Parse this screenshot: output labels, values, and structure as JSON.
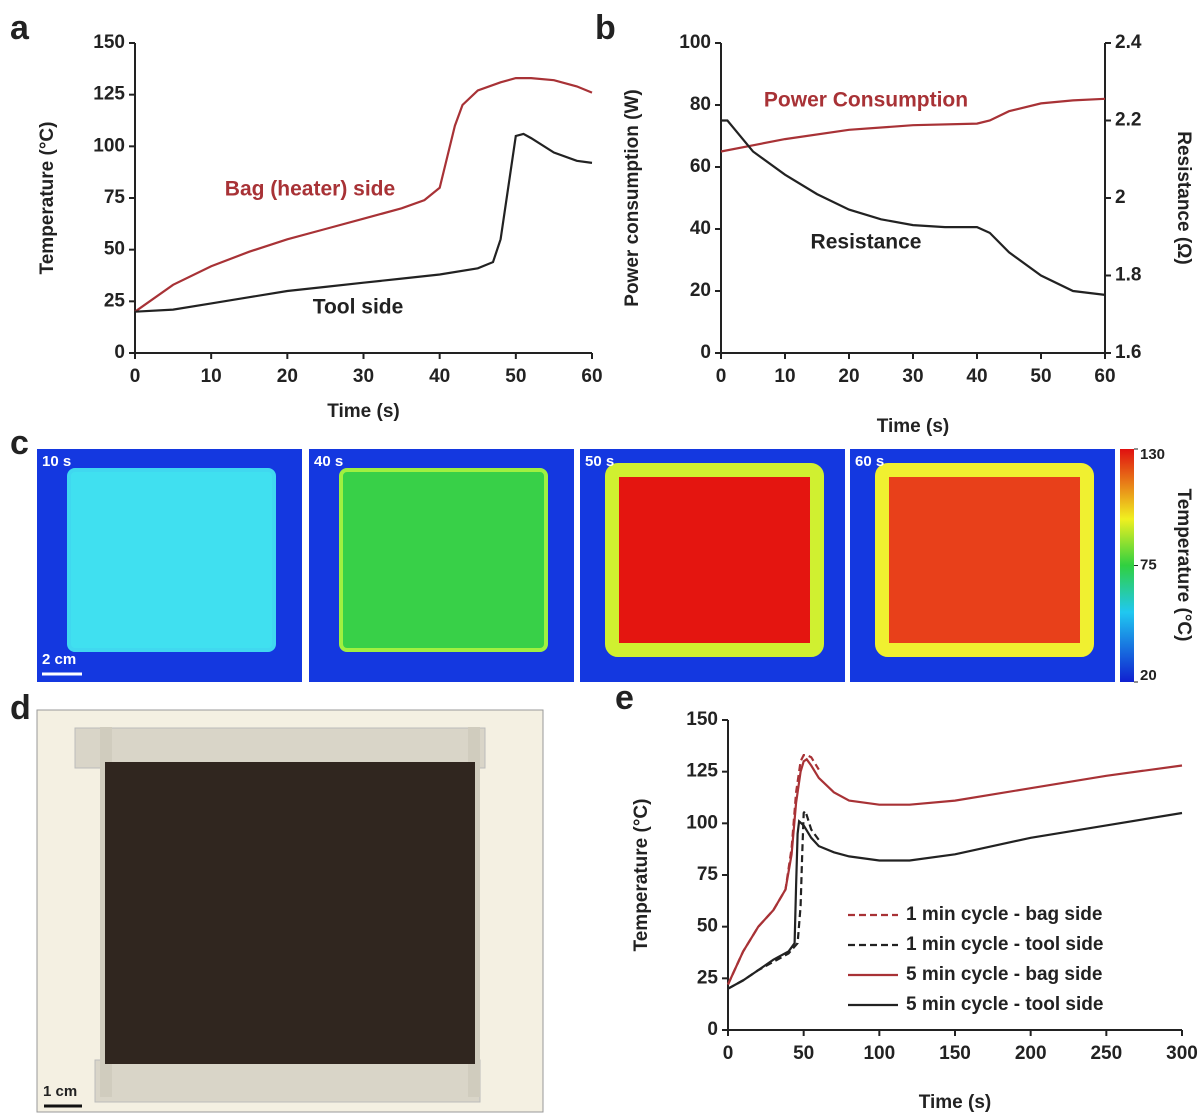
{
  "chart_data": [
    {
      "type": "line",
      "panel": "a",
      "xlabel": "Time (s)",
      "ylabel": "Temperature (°C)",
      "xlim": [
        0,
        60
      ],
      "xticks": [
        0,
        10,
        20,
        30,
        40,
        50,
        60
      ],
      "ylim": [
        0,
        150
      ],
      "yticks": [
        0,
        25,
        50,
        75,
        100,
        125,
        150
      ],
      "legend": false,
      "series": [
        {
          "name": "Bag (heater) side",
          "color": "#a83236",
          "x": [
            0,
            5,
            10,
            15,
            20,
            25,
            30,
            35,
            38,
            40,
            41,
            42,
            43,
            45,
            48,
            50,
            52,
            55,
            58,
            60
          ],
          "values": [
            20,
            33,
            42,
            49,
            55,
            60,
            65,
            70,
            74,
            80,
            95,
            110,
            120,
            127,
            131,
            133,
            133,
            132,
            129,
            126
          ]
        },
        {
          "name": "Tool side",
          "color": "#222222",
          "x": [
            0,
            5,
            10,
            15,
            20,
            25,
            30,
            35,
            40,
            45,
            47,
            48,
            49,
            50,
            51,
            52,
            55,
            58,
            60
          ],
          "values": [
            20,
            21,
            24,
            27,
            30,
            32,
            34,
            36,
            38,
            41,
            44,
            55,
            80,
            105,
            106,
            104,
            97,
            93,
            92
          ]
        }
      ]
    },
    {
      "type": "line",
      "panel": "b",
      "xlabel": "Time (s)",
      "ylabel": "Power consumption (W)",
      "y2label": "Resistance (Ω)",
      "xlim": [
        0,
        60
      ],
      "xticks": [
        0,
        10,
        20,
        30,
        40,
        50,
        60
      ],
      "ylim": [
        0,
        100
      ],
      "yticks": [
        0,
        20,
        40,
        60,
        80,
        100
      ],
      "y2lim": [
        1.6,
        2.4
      ],
      "y2ticks": [
        1.6,
        1.8,
        2,
        2.2,
        2.4
      ],
      "legend": false,
      "series": [
        {
          "name": "Power Consumption",
          "color": "#a83236",
          "x": [
            0,
            5,
            10,
            20,
            30,
            40,
            42,
            45,
            50,
            55,
            60
          ],
          "values": [
            65,
            67,
            69,
            72,
            73.5,
            74,
            75,
            78,
            80.5,
            81.5,
            82
          ]
        },
        {
          "name": "Resistance",
          "color": "#222222",
          "axis": "y2",
          "x": [
            0,
            1,
            5,
            10,
            15,
            20,
            25,
            30,
            35,
            40,
            42,
            45,
            50,
            55,
            60
          ],
          "values": [
            2.2,
            2.2,
            2.12,
            2.06,
            2.01,
            1.97,
            1.945,
            1.93,
            1.925,
            1.925,
            1.91,
            1.86,
            1.8,
            1.76,
            1.75
          ]
        }
      ]
    },
    {
      "type": "line",
      "panel": "e",
      "xlabel": "Time (s)",
      "ylabel": "Temperature (°C)",
      "xlim": [
        0,
        300
      ],
      "xticks": [
        0,
        50,
        100,
        150,
        200,
        250,
        300
      ],
      "ylim": [
        0,
        150
      ],
      "yticks": [
        0,
        25,
        50,
        75,
        100,
        125,
        150
      ],
      "legend": "lower right",
      "series": [
        {
          "name": "1 min cycle - bag side",
          "color": "#a83236",
          "linestyle": "dashed",
          "x": [
            0,
            10,
            20,
            30,
            38,
            42,
            45,
            48,
            50,
            52,
            55,
            60
          ],
          "values": [
            22,
            38,
            50,
            58,
            68,
            88,
            115,
            130,
            133,
            133,
            132,
            126
          ]
        },
        {
          "name": "1 min cycle - tool side",
          "color": "#222222",
          "linestyle": "dashed",
          "x": [
            0,
            10,
            20,
            30,
            40,
            46,
            48,
            49,
            50,
            51,
            52,
            55,
            60
          ],
          "values": [
            20,
            24,
            29,
            33,
            37,
            42,
            60,
            85,
            105,
            106,
            104,
            97,
            92
          ]
        },
        {
          "name": "5 min cycle - bag side",
          "color": "#a83236",
          "linestyle": "solid",
          "x": [
            0,
            10,
            20,
            30,
            38,
            42,
            45,
            48,
            50,
            52,
            55,
            60,
            70,
            80,
            100,
            120,
            150,
            200,
            250,
            300
          ],
          "values": [
            22,
            38,
            50,
            58,
            68,
            85,
            110,
            125,
            130,
            131,
            128,
            122,
            115,
            111,
            109,
            109,
            111,
            117,
            123,
            128
          ]
        },
        {
          "name": "5 min cycle - tool side",
          "color": "#222222",
          "linestyle": "solid",
          "x": [
            0,
            10,
            20,
            30,
            40,
            44,
            45,
            46,
            47,
            50,
            55,
            60,
            70,
            80,
            100,
            120,
            150,
            200,
            250,
            300
          ],
          "values": [
            20,
            24,
            29,
            34,
            38,
            42,
            70,
            95,
            101,
            99,
            93,
            89,
            86,
            84,
            82,
            82,
            85,
            93,
            99,
            105
          ]
        }
      ]
    }
  ],
  "thermal_images": {
    "panel": "c",
    "frames": [
      "10 s",
      "40 s",
      "50 s",
      "60 s"
    ],
    "scale_bar": "2 cm",
    "colorbar": {
      "label": "Temperature (°C)",
      "lim": [
        20,
        130
      ],
      "ticks": [
        130,
        75,
        20
      ]
    }
  },
  "photo": {
    "panel": "d",
    "scale_bar": "1 cm"
  }
}
